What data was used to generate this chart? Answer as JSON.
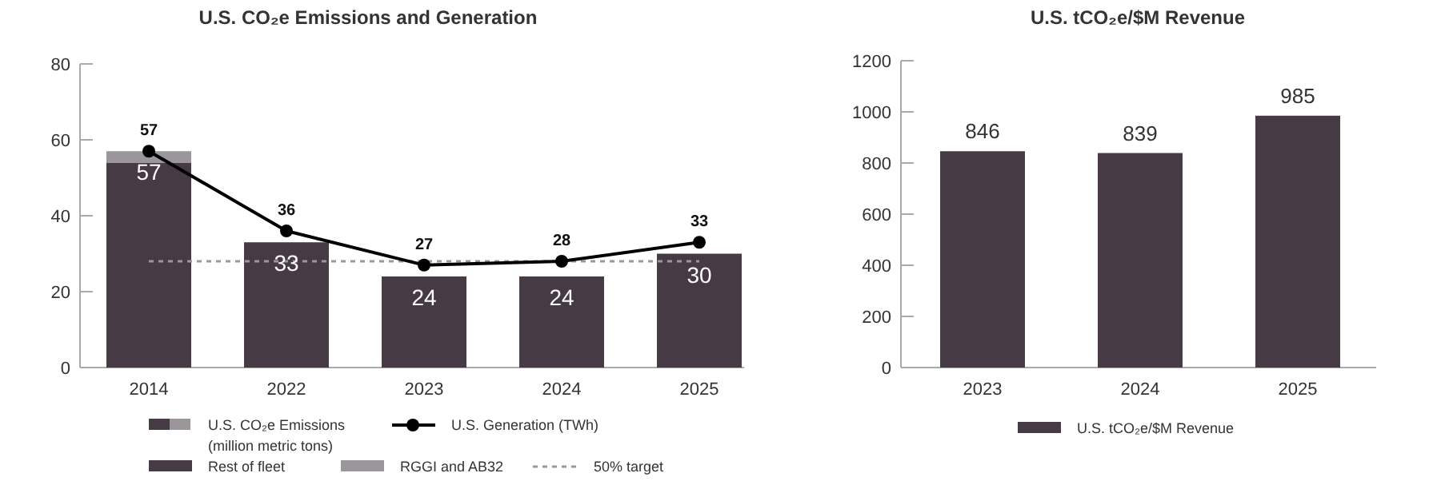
{
  "chart_data": [
    {
      "type": "bar",
      "title": "U.S. CO₂e Emissions and Generation",
      "legend_title": "U.S. CO₂e Emissions (million metric tons)",
      "categories": [
        "2014",
        "2022",
        "2023",
        "2024",
        "2025"
      ],
      "stacked": true,
      "series": [
        {
          "name": "Rest of fleet",
          "color": "#463a45",
          "values": [
            54,
            33,
            24,
            24,
            30
          ]
        },
        {
          "name": "RGGI and AB32",
          "color": "#9b969a",
          "values": [
            3,
            0,
            0,
            0,
            0
          ]
        },
        {
          "name": "U.S. Generation (TWh)",
          "type": "line",
          "color": "#000000",
          "marker": "circle",
          "data_labels": true,
          "values": [
            57,
            36,
            27,
            28,
            33
          ]
        }
      ],
      "totals": [
        "57",
        "33",
        "24",
        "24",
        "30"
      ],
      "ref_lines": [
        {
          "axis": "y",
          "value": 28,
          "label": "50% target",
          "color": "#999999",
          "line_style": "dotted"
        }
      ],
      "ylim": [
        0,
        80
      ],
      "yticks": [
        0,
        20,
        40,
        60,
        80
      ],
      "grid": false,
      "legend": "bottom"
    },
    {
      "type": "bar",
      "title": "U.S. tCO₂e/$M Revenue",
      "categories": [
        "2023",
        "2024",
        "2025"
      ],
      "series": [
        {
          "name": "U.S. tCO₂e/$M Revenue",
          "color": "#463a45",
          "values": [
            846,
            839,
            985
          ]
        }
      ],
      "data_labels": true,
      "ylim": [
        0,
        1200
      ],
      "yticks": [
        0,
        200,
        400,
        600,
        800,
        1000,
        1200
      ],
      "grid": false,
      "legend": "bottom"
    }
  ]
}
